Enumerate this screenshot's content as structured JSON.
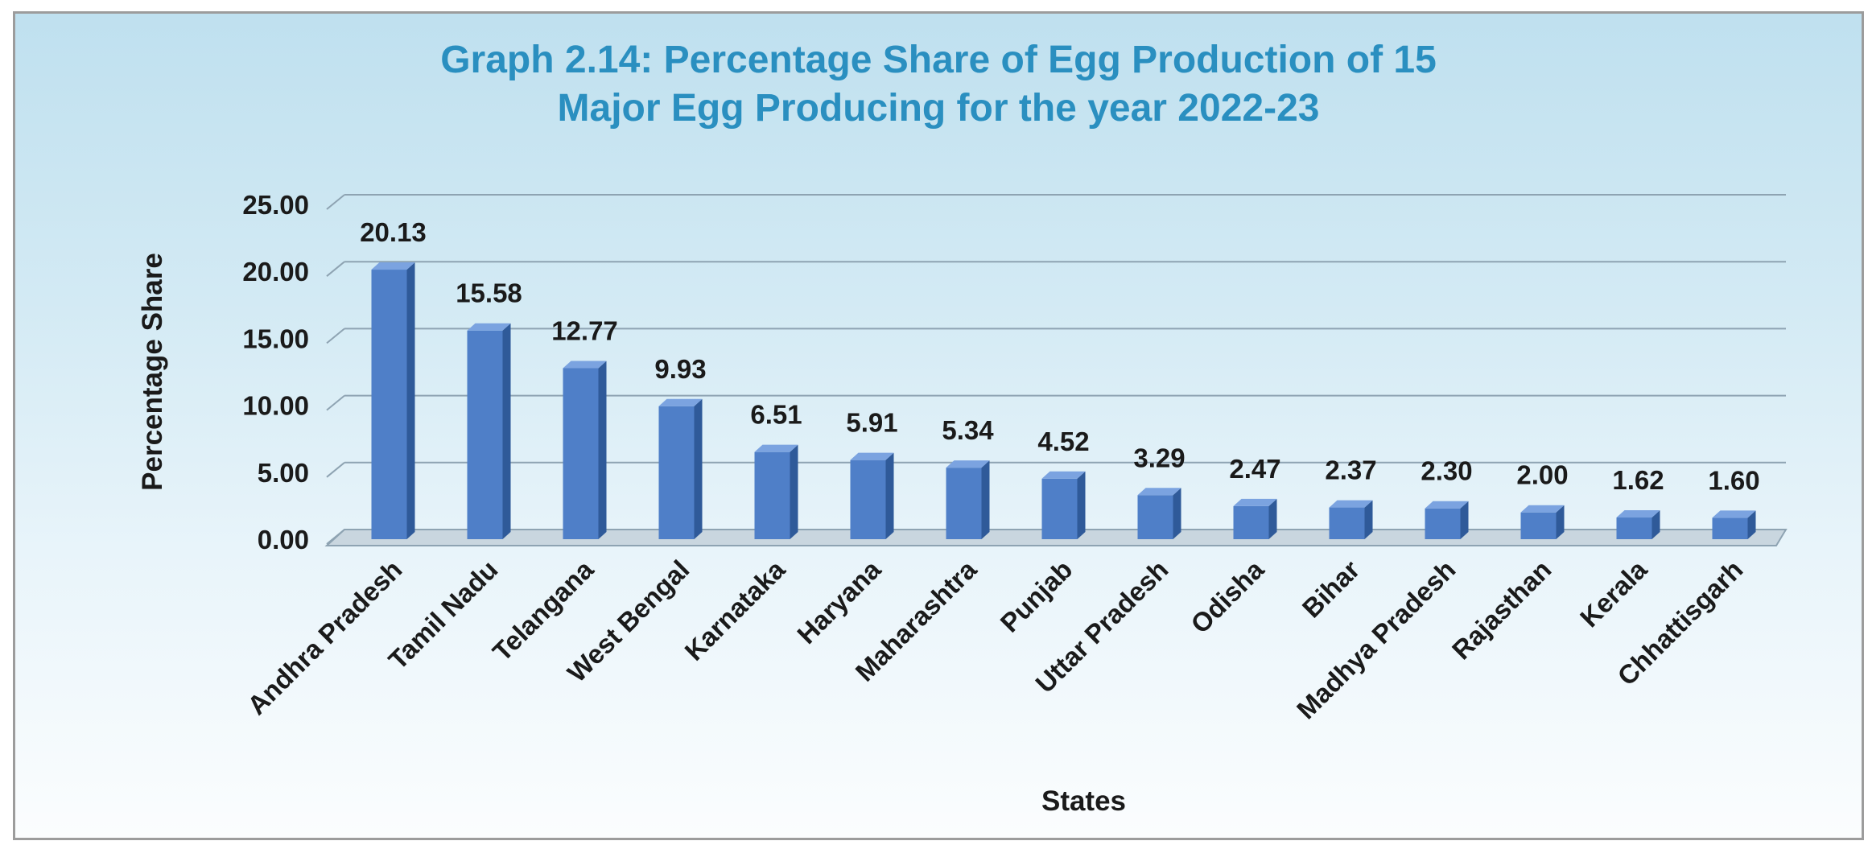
{
  "chart_data": {
    "type": "bar",
    "title_lines": [
      "Graph 2.14: Percentage Share of Egg Production of 15",
      "Major Egg Producing for the year 2022-23"
    ],
    "xlabel": "States",
    "ylabel": "Percentage Share",
    "ylim": [
      0,
      25
    ],
    "yticks": [
      "0.00",
      "5.00",
      "10.00",
      "15.00",
      "20.00",
      "25.00"
    ],
    "grid": true,
    "style": "3d-column",
    "bar_color": "#4f7fc8",
    "categories": [
      "Andhra Pradesh",
      "Tamil Nadu",
      "Telangana",
      "West Bengal",
      "Karnataka",
      "Haryana",
      "Maharashtra",
      "Punjab",
      "Uttar Pradesh",
      "Odisha",
      "Bihar",
      "Madhya Pradesh",
      "Rajasthan",
      "Kerala",
      "Chhattisgarh"
    ],
    "values": [
      20.13,
      15.58,
      12.77,
      9.93,
      6.51,
      5.91,
      5.34,
      4.52,
      3.29,
      2.47,
      2.37,
      2.3,
      2.0,
      1.62,
      1.6
    ],
    "value_labels": [
      "20.13",
      "15.58",
      "12.77",
      "9.93",
      "6.51",
      "5.91",
      "5.34",
      "4.52",
      "3.29",
      "2.47",
      "2.37",
      "2.30",
      "2.00",
      "1.62",
      "1.60"
    ]
  }
}
